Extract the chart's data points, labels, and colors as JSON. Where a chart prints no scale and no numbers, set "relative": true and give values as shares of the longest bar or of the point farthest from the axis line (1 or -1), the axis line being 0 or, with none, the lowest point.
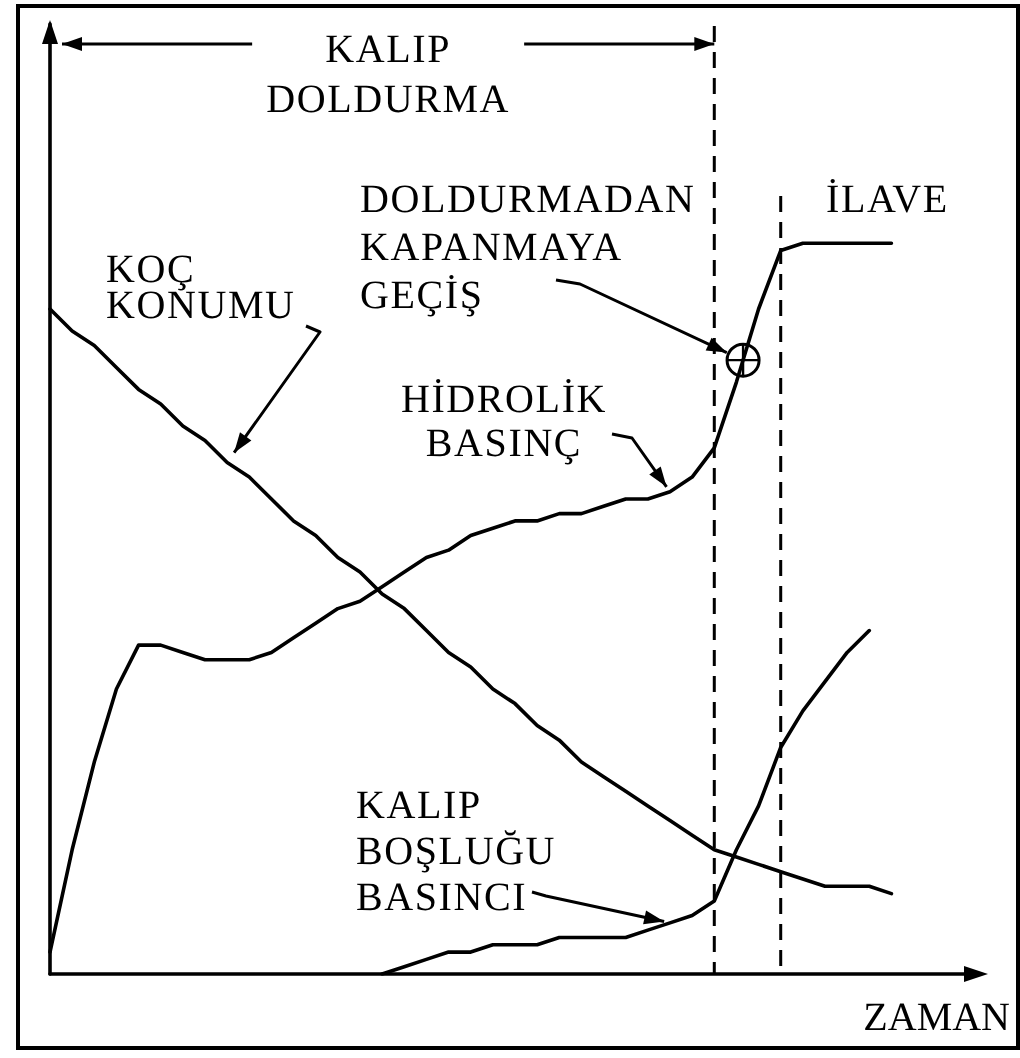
{
  "chart_data": {
    "type": "line",
    "relative": true,
    "xlabel": "ZAMAN",
    "marker": "none",
    "line_style": "solid",
    "categories": [
      null,
      null,
      null,
      null,
      null,
      null,
      null,
      null,
      null,
      null,
      null,
      null,
      null,
      null,
      null,
      null,
      null,
      null,
      null,
      null,
      null,
      null,
      null,
      null,
      null,
      null,
      null,
      null,
      null,
      null,
      null,
      null,
      null,
      null,
      null,
      null,
      null,
      null,
      null,
      null,
      null,
      null,
      null
    ],
    "series": [
      {
        "name": "KOÇ KONUMU",
        "color": "#000000",
        "values": [
          0.91,
          0.88,
          0.86,
          0.83,
          0.8,
          0.78,
          0.75,
          0.73,
          0.7,
          0.68,
          0.65,
          0.62,
          0.6,
          0.57,
          0.55,
          0.52,
          0.5,
          0.47,
          0.44,
          0.42,
          0.39,
          0.37,
          0.34,
          0.32,
          0.29,
          0.27,
          0.25,
          0.23,
          0.21,
          0.19,
          0.17,
          0.16,
          0.15,
          0.14,
          0.13,
          0.12,
          0.12,
          0.12,
          0.11,
          null,
          null,
          null,
          null
        ]
      },
      {
        "name": "HİDROLİK BASINÇ",
        "color": "#000000",
        "values": [
          0.03,
          0.17,
          0.29,
          0.39,
          0.45,
          0.45,
          0.44,
          0.43,
          0.43,
          0.43,
          0.44,
          0.46,
          0.48,
          0.5,
          0.51,
          0.53,
          0.55,
          0.57,
          0.58,
          0.6,
          0.61,
          0.62,
          0.62,
          0.63,
          0.63,
          0.64,
          0.65,
          0.65,
          0.66,
          0.68,
          0.72,
          0.81,
          0.91,
          0.99,
          1.0,
          1.0,
          1.0,
          1.0,
          1.0,
          null,
          null,
          null,
          null
        ]
      },
      {
        "name": "KALIP BOŞLUĞU BASINCI",
        "color": "#000000",
        "values": [
          null,
          null,
          null,
          null,
          null,
          null,
          null,
          null,
          null,
          null,
          null,
          null,
          null,
          null,
          null,
          0.0,
          0.01,
          0.02,
          0.03,
          0.03,
          0.04,
          0.04,
          0.04,
          0.05,
          0.05,
          0.05,
          0.05,
          0.06,
          0.07,
          0.08,
          0.1,
          0.17,
          0.23,
          0.31,
          0.36,
          0.4,
          0.44,
          0.47,
          null,
          null,
          null,
          null,
          null
        ]
      }
    ],
    "annotations": [
      "KALIP DOLDURMA",
      "DOLDURMADAN KAPANMAYA GEÇİŞ",
      "İLAVE"
    ]
  }
}
